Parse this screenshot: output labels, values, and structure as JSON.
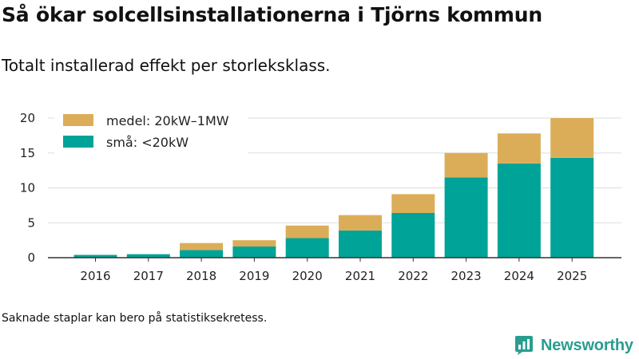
{
  "title": "Så ökar solcellsinstallationerna i Tjörns kommun",
  "subtitle": "Totalt installerad effekt per storleksklass.",
  "footnote": "Saknade staplar kan bero på statistiksekretess.",
  "brand": {
    "name": "Newsworthy",
    "icon": "newsworthy-logo-icon"
  },
  "colors": {
    "small": "#00a398",
    "medium": "#dcad58",
    "axis": "#333333",
    "grid": "#dddddd"
  },
  "chart_data": {
    "type": "bar",
    "stacked": true,
    "categories": [
      "2016",
      "2017",
      "2018",
      "2019",
      "2020",
      "2021",
      "2022",
      "2023",
      "2024",
      "2025"
    ],
    "series": [
      {
        "name": "små: <20kW",
        "key": "small",
        "values": [
          0.4,
          0.5,
          1.1,
          1.6,
          2.8,
          3.9,
          6.4,
          11.5,
          13.5,
          14.3
        ]
      },
      {
        "name": "medel: 20kW–1MW",
        "key": "medium",
        "values": [
          0.0,
          0.0,
          1.0,
          0.9,
          1.8,
          2.2,
          2.7,
          3.5,
          4.3,
          5.7
        ]
      }
    ],
    "legend_order": [
      "medium",
      "small"
    ],
    "legend_position": "top-left",
    "ylim": [
      0,
      20
    ],
    "yticks": [
      0,
      5,
      10,
      15,
      20
    ],
    "grid": true,
    "xlabel": "",
    "ylabel": ""
  }
}
